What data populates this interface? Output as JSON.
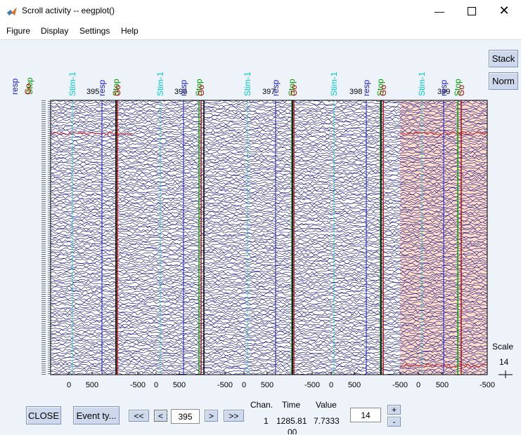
{
  "window": {
    "title": "Scroll activity -- eegplot()",
    "minimize_icon": "minimize-icon",
    "maximize_icon": "maximize-icon",
    "close_icon": "close-icon"
  },
  "menu": [
    "Figure",
    "Display",
    "Settings",
    "Help"
  ],
  "side_buttons": {
    "stack": "Stack",
    "norm": "Norm"
  },
  "plot": {
    "epoch_labels": [
      "395",
      "396",
      "397",
      "398",
      "399"
    ],
    "time_ticks": [
      "0",
      "500",
      "-500"
    ],
    "event_labels": {
      "resp": "resp",
      "stim": "Stim-1",
      "go": "Go",
      "stop": "Stop"
    },
    "trace_color": "#0b0b80",
    "highlight_color": "#ffdcc8",
    "event_colors": {
      "resp": "#1a1acc",
      "stim": "#00d0d0",
      "go": "#c00000",
      "stop": "#00a000"
    },
    "channel_count": 128
  },
  "scale": {
    "label": "Scale",
    "value": "14"
  },
  "controls": {
    "close": "CLOSE",
    "event_types": "Event ty...",
    "prev_fast": "<<",
    "prev": "<",
    "window_start": "395",
    "next": ">",
    "next_fast": ">>",
    "spacing": "14",
    "plus": "+",
    "minus": "-"
  },
  "readout": {
    "chan_header": "Chan.",
    "time_header": "Time",
    "value_header": "Value",
    "chan": "1",
    "time": "1285.81",
    "value": "7.7333",
    "cut_off": "00"
  }
}
